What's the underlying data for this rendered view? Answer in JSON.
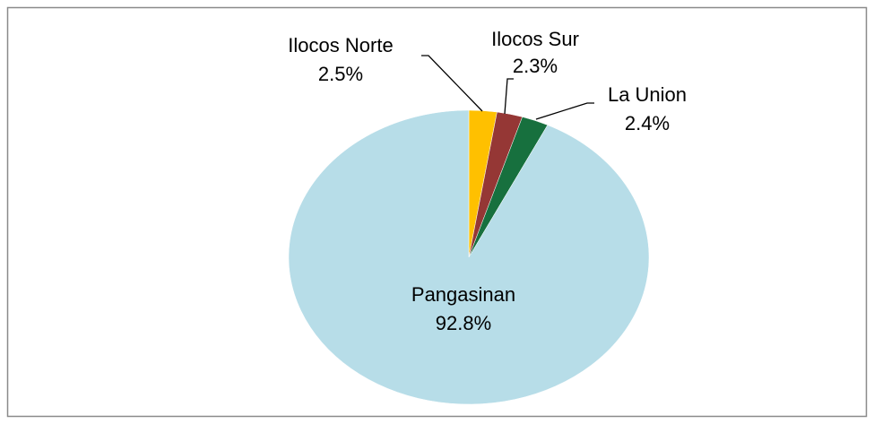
{
  "chart_data": {
    "type": "pie",
    "categories": [
      "Ilocos Norte",
      "Ilocos Sur",
      "La Union",
      "Pangasinan"
    ],
    "values": [
      2.5,
      2.3,
      2.4,
      92.8
    ],
    "value_labels": [
      "2.5%",
      "2.3%",
      "2.4%",
      "92.8%"
    ],
    "colors": [
      "#FFC000",
      "#953735",
      "#17703E",
      "#B7DDE8"
    ]
  }
}
